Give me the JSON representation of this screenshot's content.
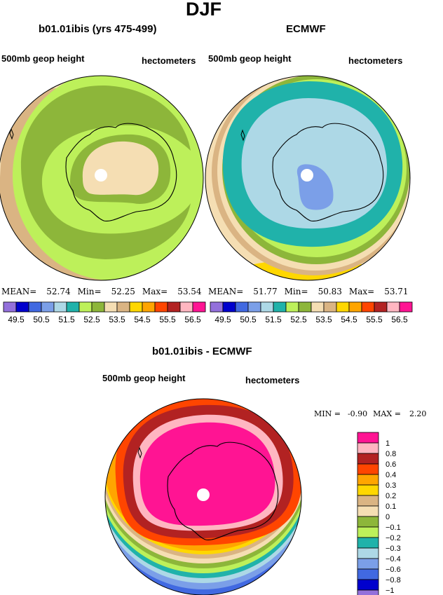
{
  "page": {
    "title": "DJF",
    "diff_title": "b01.01ibis - ECMWF"
  },
  "panels": [
    {
      "title": "b01.01ibis (yrs 475-499)",
      "left_label": "500mb geop height",
      "right_label": "hectometers",
      "stats": {
        "mean_label": "MEAN=",
        "mean": "52.74",
        "min_label": "Min=",
        "min": "52.25",
        "max_label": "Max=",
        "max": "53.54"
      }
    },
    {
      "title": "ECMWF",
      "left_label": "500mb geop height",
      "right_label": "hectometers",
      "stats": {
        "mean_label": "MEAN=",
        "mean": "51.77",
        "min_label": "Min=",
        "min": "50.83",
        "max_label": "Max=",
        "max": "53.71"
      }
    },
    {
      "title": "b01.01ibis - ECMWF",
      "left_label": "500mb geop height",
      "right_label": "hectometers",
      "stats": {
        "min_label": "MIN =",
        "min": "-0.90",
        "max_label": "MAX =",
        "max": "2.20"
      }
    }
  ],
  "chart_data": [
    {
      "type": "heatmap",
      "title": "b01.01ibis (yrs 475-499)",
      "projection": "south-polar-stereographic",
      "variable": "500mb geop height",
      "units": "hectometers",
      "mean": 52.74,
      "min": 52.25,
      "max": 53.54,
      "legend_levels": [
        49.5,
        50.5,
        51.5,
        52.5,
        53.5,
        54.5,
        55.5,
        56.5
      ],
      "legend_tick_labels": [
        "49.5",
        "50.5",
        "51.5",
        "52.5",
        "53.5",
        "54.5",
        "55.5",
        "56.5"
      ],
      "legend_colors": [
        "#9370db",
        "#0000cd",
        "#4169e1",
        "#7b9fe8",
        "#add8e6",
        "#20b2aa",
        "#bdf05a",
        "#8db63a",
        "#f5deb3",
        "#dab483",
        "#ffd700",
        "#ffa500",
        "#ff4500",
        "#b22222",
        "#ffb6c1",
        "#ff1493"
      ]
    },
    {
      "type": "heatmap",
      "title": "ECMWF",
      "projection": "south-polar-stereographic",
      "variable": "500mb geop height",
      "units": "hectometers",
      "mean": 51.77,
      "min": 50.83,
      "max": 53.71,
      "legend_levels": [
        49.5,
        50.5,
        51.5,
        52.5,
        53.5,
        54.5,
        55.5,
        56.5
      ],
      "legend_tick_labels": [
        "49.5",
        "50.5",
        "51.5",
        "52.5",
        "53.5",
        "54.5",
        "55.5",
        "56.5"
      ],
      "legend_colors": [
        "#9370db",
        "#0000cd",
        "#4169e1",
        "#7b9fe8",
        "#add8e6",
        "#20b2aa",
        "#bdf05a",
        "#8db63a",
        "#f5deb3",
        "#dab483",
        "#ffd700",
        "#ffa500",
        "#ff4500",
        "#b22222",
        "#ffb6c1",
        "#ff1493"
      ]
    },
    {
      "type": "heatmap",
      "title": "b01.01ibis - ECMWF",
      "projection": "south-polar-stereographic",
      "variable": "500mb geop height",
      "units": "hectometers",
      "min": -0.9,
      "max": 2.2,
      "legend_levels": [
        1,
        0.8,
        0.6,
        0.4,
        0.3,
        0.2,
        0.1,
        0,
        -0.1,
        -0.2,
        -0.3,
        -0.4,
        -0.6,
        -0.8,
        -1
      ],
      "legend_tick_labels": [
        "1",
        "0.8",
        "0.6",
        "0.4",
        "0.3",
        "0.2",
        "0.1",
        "0",
        "−0.1",
        "−0.2",
        "−0.3",
        "−0.4",
        "−0.6",
        "−0.8",
        "−1"
      ],
      "legend_colors": [
        "#ff1493",
        "#ffb6c1",
        "#b22222",
        "#ff4500",
        "#ffa500",
        "#ffd700",
        "#dab483",
        "#f5deb3",
        "#8db63a",
        "#bdf05a",
        "#20b2aa",
        "#add8e6",
        "#7b9fe8",
        "#4169e1",
        "#0000cd",
        "#9370db"
      ]
    }
  ]
}
